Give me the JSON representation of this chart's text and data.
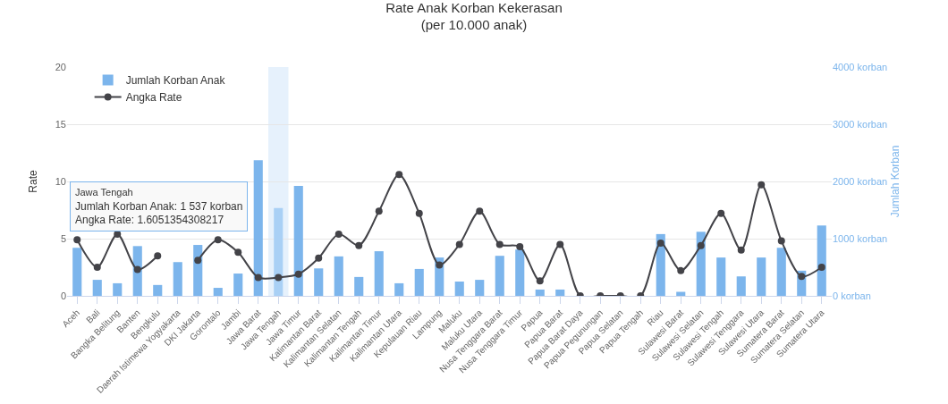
{
  "chart_data": {
    "type": "bar",
    "title": "Rate Anak Korban Kekerasan",
    "subtitle": "(per 10.000 anak)",
    "ylabel": "Rate",
    "y2label": "Jumlah Korban",
    "categories": [
      "Aceh",
      "Bali",
      "Bangka Belitung",
      "Banten",
      "Bengkulu",
      "Daerah Istimewa Yogyakarta",
      "DKI Jakarta",
      "Gorontalo",
      "Jambi",
      "Jawa Barat",
      "Jawa Tengah",
      "Jawa Timur",
      "Kalimantan Barat",
      "Kalimantan Selatan",
      "Kalimantan Tengah",
      "Kalimantan Timur",
      "Kalimantan Utara",
      "Kepulauan Riau",
      "Lampung",
      "Maluku",
      "Maluku Utara",
      "Nusa Tenggara Barat",
      "Nusa Tenggara Timur",
      "Papua",
      "Papua Barat",
      "Papua Barat Daya",
      "Papua Pegunungan",
      "Papua Selatan",
      "Papua Tengah",
      "Riau",
      "Sulawesi Barat",
      "Sulawesi Selatan",
      "Sulawesi Tengah",
      "Sulawesi Tenggara",
      "Sulawesi Utara",
      "Sumatera Barat",
      "Sumatera Selatan",
      "Sumatera Utara"
    ],
    "series": [
      {
        "name": "Jumlah Korban Anak",
        "axis": "y2",
        "color": "#7cb5ec",
        "colors": [
          "#7cb5ec",
          "#7cb5ec",
          "#7cb5ec",
          "#7cb5ec",
          "#7cb5ec",
          "#7cb5ec",
          "#7cb5ec",
          "#7cb5ec",
          "#7cb5ec",
          "#7cb5ec",
          "#a9d0f5",
          "#7cb5ec",
          "#7cb5ec",
          "#7cb5ec",
          "#7cb5ec",
          "#7cb5ec",
          "#7cb5ec",
          "#7cb5ec",
          "#7cb5ec",
          "#7cb5ec",
          "#7cb5ec",
          "#7cb5ec",
          "#7cb5ec",
          "#7cb5ec",
          "#7cb5ec",
          "#7cb5ec",
          "#7cb5ec",
          "#7cb5ec",
          "#7cb5ec",
          "#7cb5ec",
          "#7cb5ec",
          "#7cb5ec",
          "#7cb5ec",
          "#7cb5ec",
          "#7cb5ec",
          "#7cb5ec",
          "#7cb5ec",
          "#7cb5ec"
        ],
        "values": [
          840,
          280,
          220,
          870,
          190,
          590,
          890,
          140,
          390,
          2370,
          1537,
          1920,
          480,
          690,
          330,
          780,
          220,
          470,
          670,
          250,
          280,
          700,
          810,
          110,
          110,
          0,
          0,
          0,
          0,
          1080,
          70,
          1120,
          670,
          340,
          670,
          840,
          440,
          1230
        ]
      },
      {
        "name": "Angka Rate",
        "type": "line",
        "color": "#434348",
        "values": [
          4.9,
          2.5,
          5.4,
          2.3,
          3.5,
          null,
          3.1,
          4.9,
          3.8,
          1.6,
          1.6051354308217,
          1.9,
          3.3,
          5.4,
          4.4,
          7.4,
          10.6,
          7.2,
          2.7,
          4.5,
          7.4,
          4.5,
          4.3,
          1.3,
          4.5,
          0,
          0,
          0,
          0,
          4.6,
          2.2,
          4.4,
          7.2,
          4.0,
          9.7,
          4.8,
          1.7,
          2.5
        ]
      }
    ],
    "ylim": [
      0,
      20
    ],
    "yticks": [
      0,
      5,
      10,
      15,
      20
    ],
    "y2lim": [
      0,
      4000
    ],
    "y2ticks": [
      {
        "value": 0,
        "label": "0 korban"
      },
      {
        "value": 1000,
        "label": "1000 korban"
      },
      {
        "value": 2000,
        "label": "2000 korban"
      },
      {
        "value": 3000,
        "label": "3000 korban"
      },
      {
        "value": 4000,
        "label": "4000 korban"
      }
    ],
    "bands": [
      {
        "axis": "x",
        "from": "Jawa Tengah",
        "to": "Jawa Tengah",
        "color": "#e6f1fc"
      }
    ],
    "annotations": [
      "Jawa Tengah",
      "Jumlah Korban Anak: 1 537 korban",
      "Angka Rate: 1.6051354308217"
    ],
    "grid": "y",
    "legend": "top left",
    "marker": "circle",
    "line_style": "solid"
  }
}
